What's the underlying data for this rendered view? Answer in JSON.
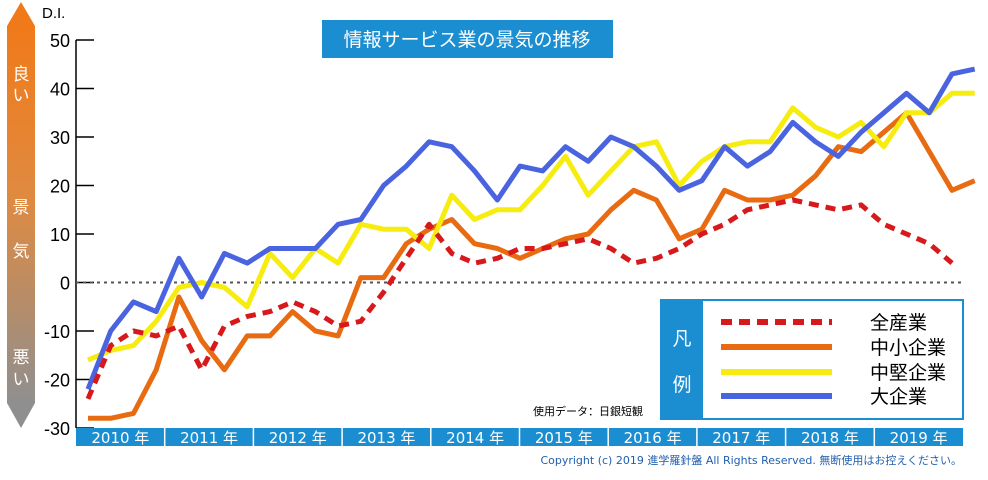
{
  "chart_data": {
    "type": "line",
    "title": "情報サービス業の景気の推移",
    "ylabel": "D.I.",
    "ylim": [
      -30,
      50
    ],
    "yticks": [
      50,
      40,
      30,
      20,
      10,
      0,
      -10,
      -20,
      -30
    ],
    "years": [
      "2010 年",
      "2011 年",
      "2012 年",
      "2013 年",
      "2014 年",
      "2015 年",
      "2016 年",
      "2017 年",
      "2018 年",
      "2019 年"
    ],
    "side_labels": {
      "good": [
        "良",
        "い"
      ],
      "mid": [
        "景",
        "気"
      ],
      "bad": [
        "悪",
        "い"
      ]
    },
    "legend_title": [
      "凡",
      "例"
    ],
    "note": "使用データ：日銀短観",
    "copyright": "Copyright (c) 2019 進学羅針盤 All Rights Reserved. 無断使用はお控えください。",
    "series": [
      {
        "name": "全産業",
        "color": "#d7191c",
        "dashed": true,
        "values": [
          -24,
          -13,
          -10,
          -11,
          -9,
          -18,
          -9,
          -7,
          -6,
          -4,
          -6,
          -9,
          -8,
          -2,
          5,
          12,
          6,
          4,
          5,
          7,
          7,
          8,
          9,
          7,
          4,
          5,
          7,
          10,
          12,
          15,
          16,
          17,
          16,
          15,
          16,
          12,
          10,
          8,
          4
        ]
      },
      {
        "name": "中小企業",
        "color": "#e86b12",
        "values": [
          -28,
          -28,
          -27,
          -18,
          -3,
          -12,
          -18,
          -11,
          -11,
          -6,
          -10,
          -11,
          1,
          1,
          8,
          11,
          13,
          8,
          7,
          5,
          7,
          9,
          10,
          15,
          19,
          17,
          9,
          11,
          19,
          17,
          17,
          18,
          22,
          28,
          27,
          31,
          35,
          27,
          19,
          21
        ]
      },
      {
        "name": "中堅企業",
        "color": "#f6ec10",
        "values": [
          -16,
          -14,
          -13,
          -8,
          -1,
          0,
          -1,
          -5,
          6,
          1,
          7,
          4,
          12,
          11,
          11,
          7,
          18,
          13,
          15,
          15,
          20,
          26,
          18,
          23,
          28,
          29,
          20,
          25,
          28,
          29,
          29,
          36,
          32,
          30,
          33,
          28,
          35,
          35,
          39,
          39
        ]
      },
      {
        "name": "大企業",
        "color": "#4a64e0",
        "values": [
          -22,
          -10,
          -4,
          -6,
          5,
          -3,
          6,
          4,
          7,
          7,
          7,
          12,
          13,
          20,
          24,
          29,
          28,
          23,
          17,
          24,
          23,
          28,
          25,
          30,
          28,
          24,
          19,
          21,
          28,
          24,
          27,
          33,
          29,
          26,
          31,
          35,
          39,
          35,
          43,
          44
        ]
      }
    ]
  }
}
